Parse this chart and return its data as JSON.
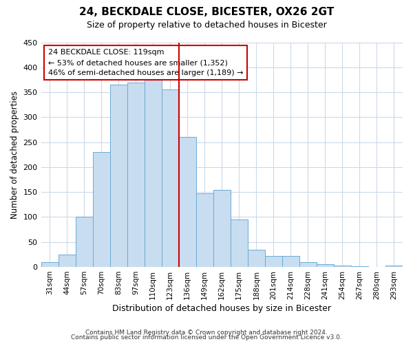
{
  "title": "24, BECKDALE CLOSE, BICESTER, OX26 2GT",
  "subtitle": "Size of property relative to detached houses in Bicester",
  "xlabel": "Distribution of detached houses by size in Bicester",
  "ylabel": "Number of detached properties",
  "categories": [
    "31sqm",
    "44sqm",
    "57sqm",
    "70sqm",
    "83sqm",
    "97sqm",
    "110sqm",
    "123sqm",
    "136sqm",
    "149sqm",
    "162sqm",
    "175sqm",
    "188sqm",
    "201sqm",
    "214sqm",
    "228sqm",
    "241sqm",
    "254sqm",
    "267sqm",
    "280sqm",
    "293sqm"
  ],
  "values": [
    10,
    25,
    100,
    230,
    365,
    370,
    375,
    355,
    260,
    148,
    155,
    95,
    35,
    22,
    22,
    10,
    5,
    3,
    2,
    0,
    3
  ],
  "bar_color": "#c8ddf0",
  "bar_edge_color": "#6aaad4",
  "marker_line_color": "#cc0000",
  "annotation_box_edge": "#cc0000",
  "annotation_box_color": "#ffffff",
  "marker_label": "24 BECKDALE CLOSE: 119sqm",
  "annotation_line1": "← 53% of detached houses are smaller (1,352)",
  "annotation_line2": "46% of semi-detached houses are larger (1,189) →",
  "ylim": [
    0,
    450
  ],
  "yticks": [
    0,
    50,
    100,
    150,
    200,
    250,
    300,
    350,
    400,
    450
  ],
  "footer1": "Contains HM Land Registry data © Crown copyright and database right 2024.",
  "footer2": "Contains public sector information licensed under the Open Government Licence v3.0.",
  "background_color": "#ffffff",
  "grid_color": "#ccd9e8"
}
